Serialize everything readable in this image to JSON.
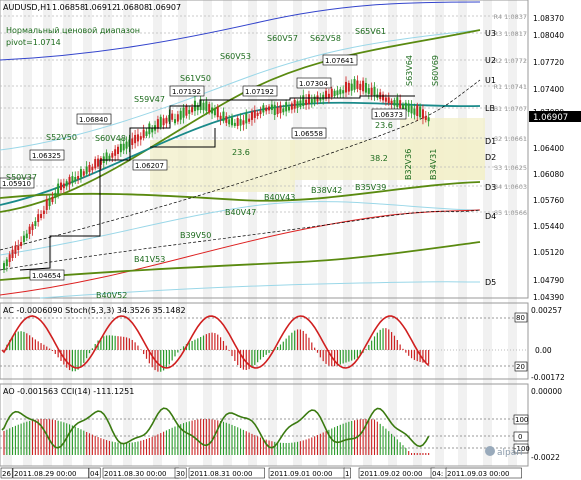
{
  "header": {
    "symbol": "AUDUSD,H1",
    "open": "1.06858",
    "high": "1.06912",
    "low": "1.06808",
    "close": "1.06907",
    "indicator_name": "Нормальный ценовой диапазон",
    "pivot": "pivot=1.0714"
  },
  "price_axis": {
    "ticks": [
      "1.08370",
      "1.08040",
      "1.07720",
      "1.07400",
      "1.07080",
      "1.06907",
      "1.06400",
      "1.06080",
      "1.05760",
      "1.05440",
      "1.05120",
      "1.04790",
      "1.04390"
    ],
    "current": "1.06907"
  },
  "levels": [
    {
      "label": "R4 1.0837"
    },
    {
      "label": "R3 1.0817"
    },
    {
      "label": "R2 1.0772"
    },
    {
      "label": "R1 1.0741"
    },
    {
      "label": "S1 1.0707"
    },
    {
      "label": "S2 1.0661"
    },
    {
      "label": "S3 1.0625"
    },
    {
      "label": "S4 1.0603"
    },
    {
      "label": "S5 1.0566"
    },
    {
      "label": "U3"
    },
    {
      "label": "U2"
    },
    {
      "label": "U1"
    },
    {
      "label": "LB"
    },
    {
      "label": "D1"
    },
    {
      "label": "D2"
    },
    {
      "label": "D3"
    },
    {
      "label": "D4"
    },
    {
      "label": "D5"
    }
  ],
  "price_boxes": [
    "1.05910",
    "1.06325",
    "1.06840",
    "1.07192",
    "1.07192",
    "1.07304",
    "1.07641",
    "1.06207",
    "1.06558",
    "1.06373",
    "1.04654"
  ],
  "wave_labels": [
    "S50V37",
    "S52V50",
    "S60V48",
    "S59V47",
    "S61V50",
    "S60V53",
    "S60V57",
    "S62V58",
    "S65V61",
    "S63V64",
    "S60V69",
    "B41V53",
    "B40V52",
    "B39V50",
    "B40V47",
    "B40V43",
    "B38V42",
    "B35V39",
    "B32V36",
    "B34V31",
    "23.6",
    "38.2",
    "23.6"
  ],
  "ac_panel": {
    "title": "AC -0.0006090   Stoch(5,3,3) 34.3526 35.1482",
    "scale_right": [
      "0.00257",
      "0.00",
      "-0.00172"
    ],
    "stoch_levels": [
      "80",
      "20"
    ]
  },
  "ao_panel": {
    "title": "AO -0.001563   CCI(14) -111.1251",
    "scale_right": [
      "0.00000",
      "-0.0022"
    ],
    "cci_levels": [
      "100",
      "0",
      "-100"
    ]
  },
  "watermark": "alpari",
  "time_axis": [
    "26",
    "2011.08.29 00:00",
    "04",
    "2011.08.30 00:00",
    "30",
    "2011.08.31 00:00",
    "2011.09.01 00:00",
    "1",
    "2011.09.02 00:00",
    "04:",
    "2011.09.03 00:00"
  ],
  "colors": {
    "bull_candle": "#2a9a2a",
    "bear_candle": "#cc2222",
    "outer_band": "#5a8a10",
    "lb_line": "#1a8a8a",
    "upper_blue": "#3344cc",
    "lower_red": "#dd2222",
    "shade": "#f3f0cc",
    "label_green": "#1d6b1d"
  }
}
